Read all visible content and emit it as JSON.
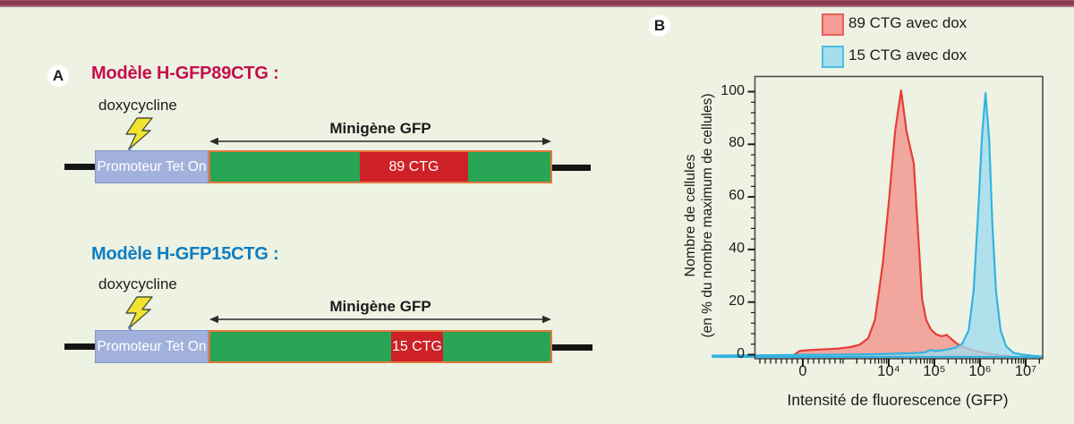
{
  "page": {
    "background": "#edf2e2",
    "top_bar_color": "#893a4f"
  },
  "panel_a": {
    "label": "A",
    "models": [
      {
        "title": "Modèle H-GFP89CTG :",
        "title_color": "#c60d4e",
        "inducer": "doxycycline",
        "promoter_label": "Promoteur Tet On",
        "minigene_label": "Minigène GFP",
        "insert_label": "89 CTG"
      },
      {
        "title": "Modèle H-GFP15CTG :",
        "title_color": "#0d7dc2",
        "inducer": "doxycycline",
        "promoter_label": "Promoteur Tet On",
        "minigene_label": "Minigène GFP",
        "insert_label": "15 CTG"
      }
    ],
    "colors": {
      "promoter_fill": "#a1b1dc",
      "promoter_border": "#8095cb",
      "gene_fill": "#29a556",
      "gene_border": "#e4793a",
      "insert_fill": "#ce2127",
      "bolt_fill": "#f2e42e",
      "backbone": "#141414"
    }
  },
  "panel_b": {
    "label": "B"
  },
  "chart_data": {
    "type": "area",
    "subtype": "flow-cytometry histogram overlay",
    "title": "",
    "xlabel": "Intensité de fluorescence (GFP)",
    "ylabel": [
      "Nombre de cellules",
      "(en % du nombre maximum de cellules)"
    ],
    "x_scale": "logicle",
    "x_ticks": [
      "0",
      "10⁴",
      "10⁵",
      "10⁶",
      "10⁷"
    ],
    "y_ticks": [
      0,
      20,
      40,
      60,
      80,
      100
    ],
    "ylim": [
      0,
      100
    ],
    "grid": false,
    "legend_position": "top-right-outside",
    "x_units_note": "point x values are axis-tick units: 0 = tick '0', 1 = 10⁴, 2 = 10⁵, 3 = 10⁶, 4 = 10⁷",
    "series": [
      {
        "name": "89 CTG avec dox",
        "stroke": "#e73e36",
        "fill": "#f2928b",
        "swatch_fill": "#f59c96",
        "swatch_border": "#e8605a",
        "points": [
          [
            -0.16,
            0
          ],
          [
            -0.1,
            0.8
          ],
          [
            -0.04,
            2.2
          ],
          [
            0,
            2.4
          ],
          [
            0.2,
            2.8
          ],
          [
            0.4,
            3.1
          ],
          [
            0.55,
            3.7
          ],
          [
            0.66,
            4.6
          ],
          [
            0.76,
            7
          ],
          [
            0.84,
            14
          ],
          [
            0.93,
            35
          ],
          [
            1.0,
            58
          ],
          [
            1.14,
            85
          ],
          [
            1.27,
            100.5
          ],
          [
            1.39,
            85
          ],
          [
            1.55,
            73
          ],
          [
            1.67,
            39
          ],
          [
            1.73,
            22
          ],
          [
            1.82,
            14
          ],
          [
            1.92,
            10.5
          ],
          [
            2.04,
            8.5
          ],
          [
            2.16,
            7.8
          ],
          [
            2.27,
            8.3
          ],
          [
            2.39,
            6.5
          ],
          [
            2.51,
            4.8
          ],
          [
            2.67,
            3.5
          ],
          [
            2.9,
            2.2
          ],
          [
            3.2,
            1.2
          ],
          [
            3.49,
            0.5
          ],
          [
            3.73,
            0
          ]
        ]
      },
      {
        "name": "15 CTG avec dox",
        "stroke": "#33b3e1",
        "fill": "#a0dbef",
        "swatch_fill": "#a5ddef",
        "swatch_border": "#49bfe3",
        "points": [
          [
            -1.05,
            0.5
          ],
          [
            -0.5,
            0.6
          ],
          [
            0,
            0.8
          ],
          [
            0.55,
            0.9
          ],
          [
            0.81,
            1.0
          ],
          [
            1.14,
            1.2
          ],
          [
            1.53,
            1.4
          ],
          [
            1.78,
            1.7
          ],
          [
            1.92,
            2.6
          ],
          [
            2.02,
            2.2
          ],
          [
            2.16,
            2.5
          ],
          [
            2.31,
            2.9
          ],
          [
            2.47,
            3.5
          ],
          [
            2.61,
            5
          ],
          [
            2.75,
            10
          ],
          [
            2.86,
            25
          ],
          [
            2.96,
            55
          ],
          [
            3.04,
            82
          ],
          [
            3.12,
            99.5
          ],
          [
            3.2,
            82
          ],
          [
            3.27,
            50
          ],
          [
            3.35,
            25
          ],
          [
            3.45,
            10
          ],
          [
            3.57,
            4
          ],
          [
            3.73,
            1.6
          ],
          [
            3.92,
            0.9
          ],
          [
            4.18,
            0.4
          ],
          [
            4.33,
            0.2
          ],
          [
            4.37,
            0
          ]
        ]
      }
    ]
  }
}
